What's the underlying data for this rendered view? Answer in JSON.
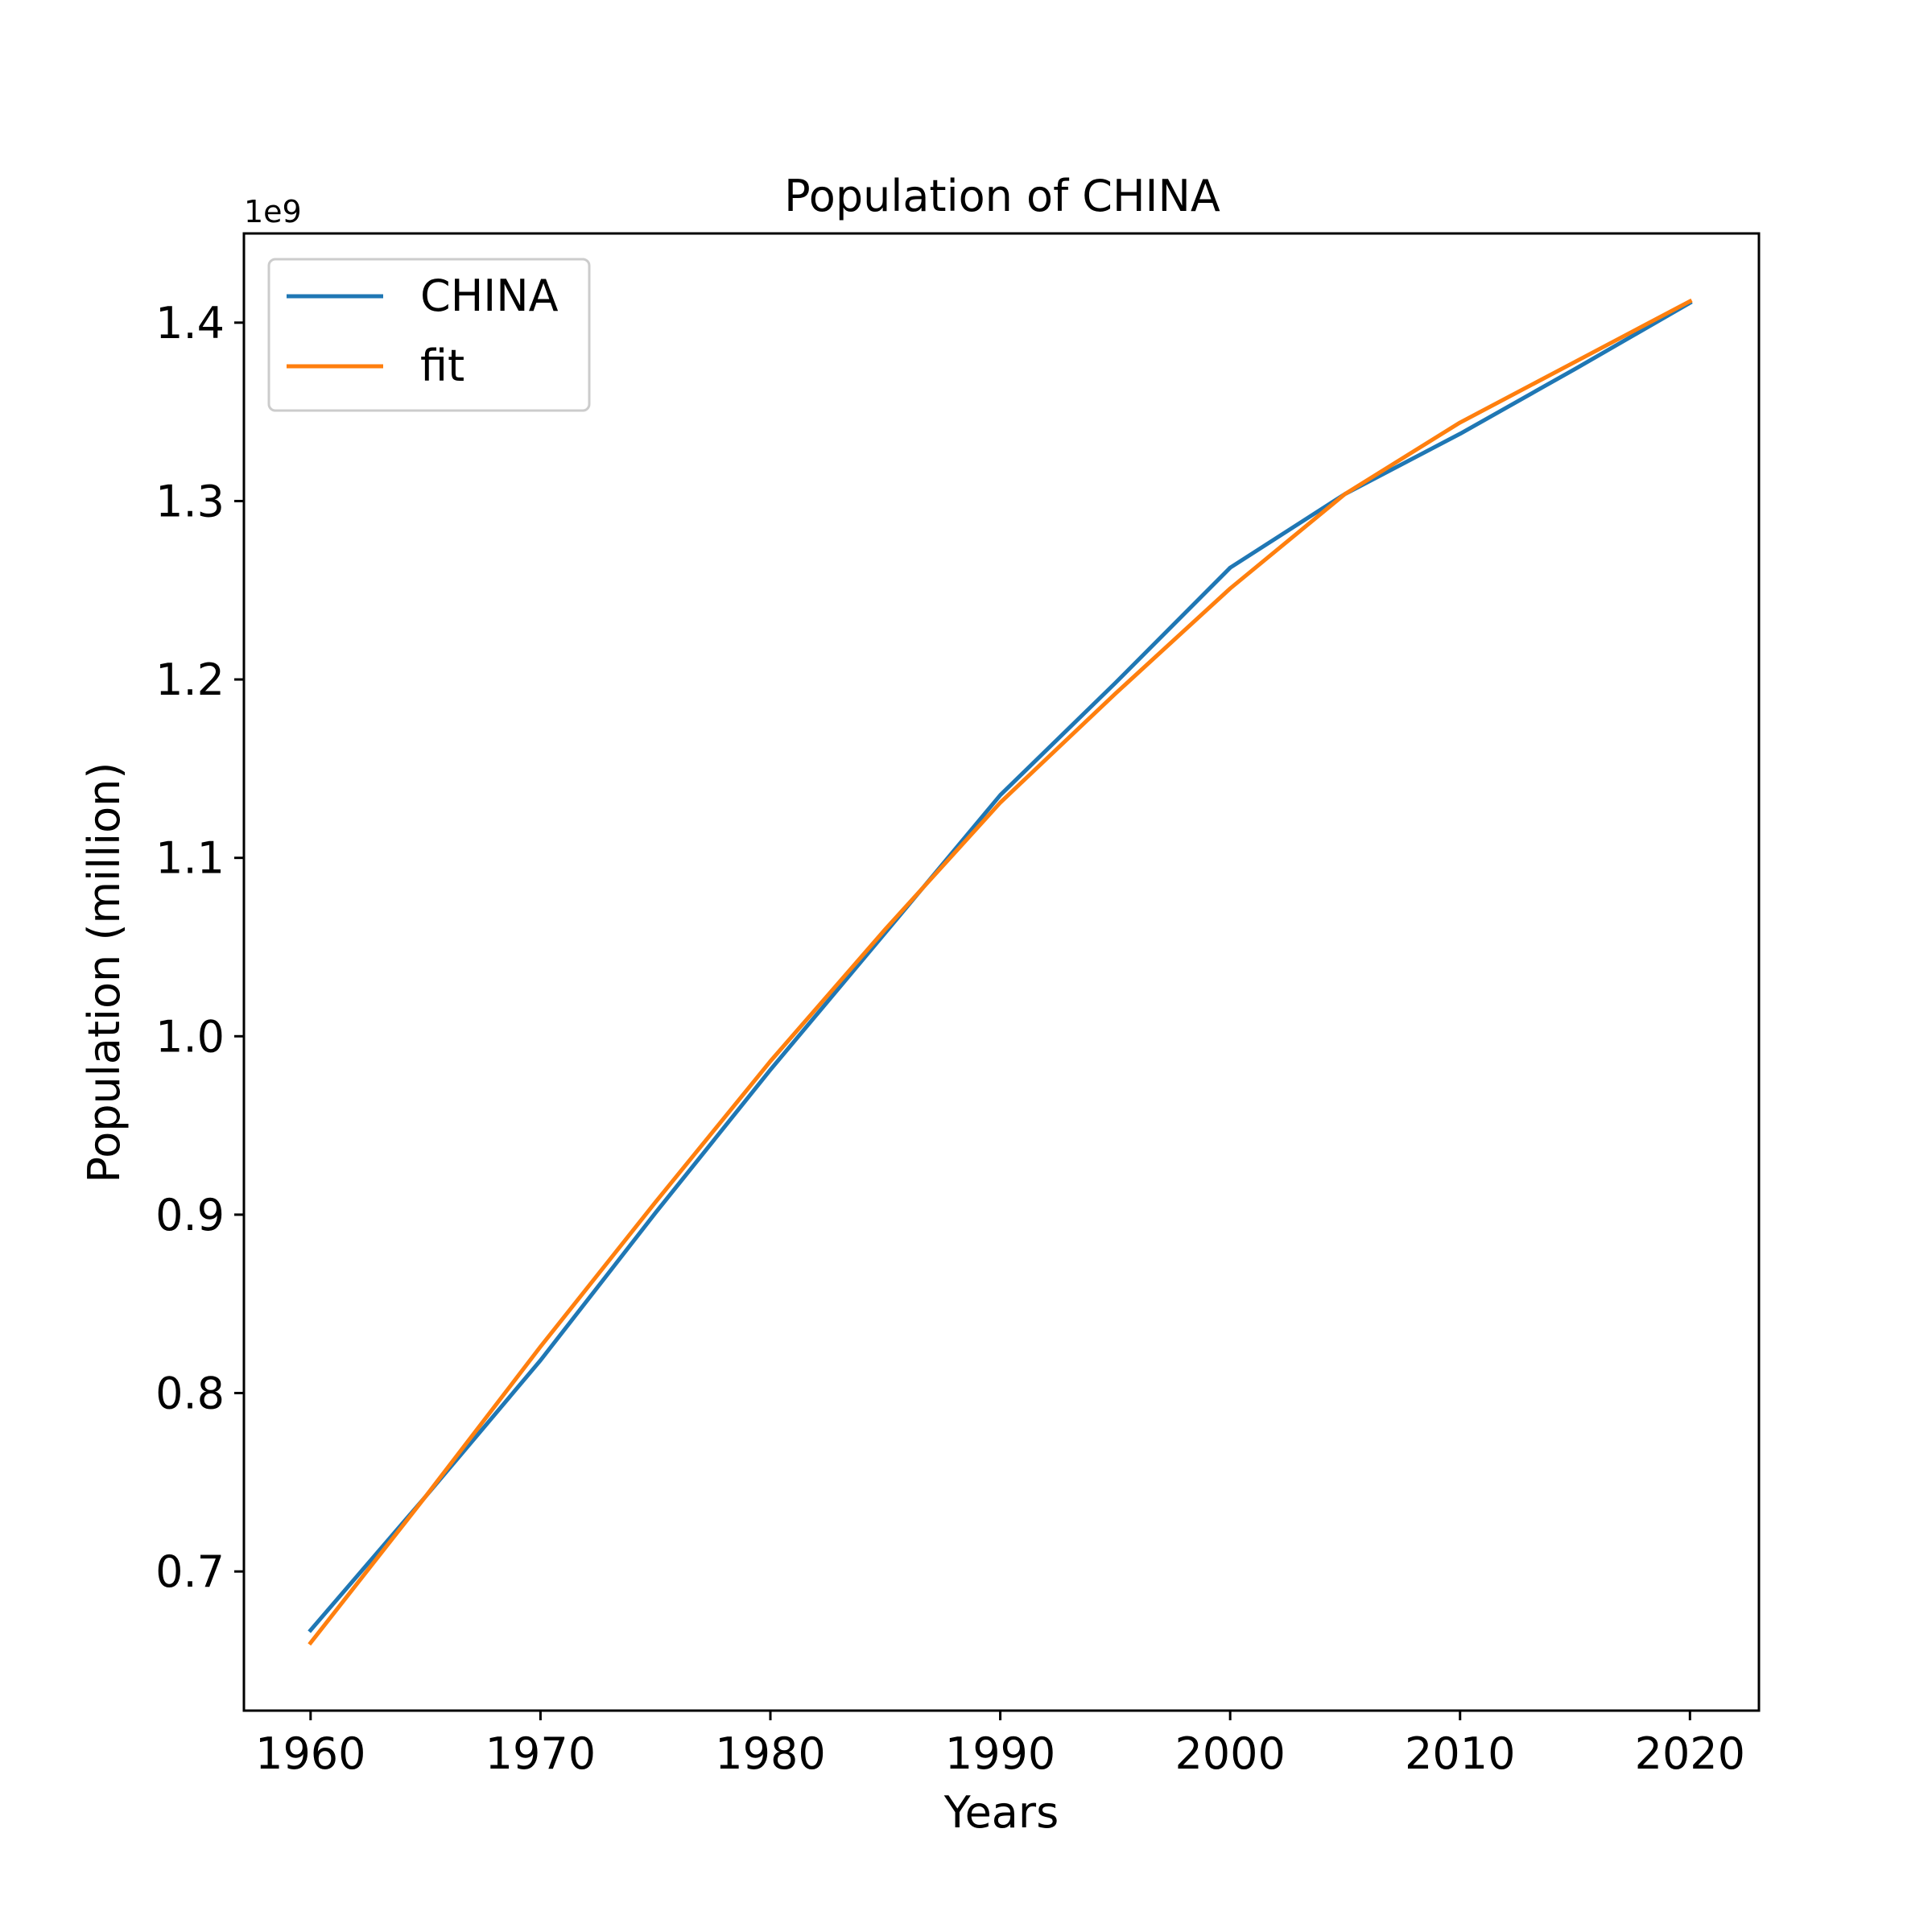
{
  "chart_data": {
    "type": "line",
    "title": "Population of CHINA",
    "xlabel": "Years",
    "ylabel": "Population (million)",
    "y_offset_label": "1e9",
    "x": [
      1960,
      1965,
      1970,
      1975,
      1980,
      1985,
      1990,
      1995,
      2000,
      2005,
      2010,
      2015,
      2020
    ],
    "series": [
      {
        "name": "CHINA",
        "color": "#1f77b4",
        "values": [
          667070000,
          742000000,
          818315000,
          901000000,
          981235000,
          1058000000,
          1135185000,
          1198000000,
          1262645000,
          1304000000,
          1337705000,
          1374000000,
          1411100000
        ]
      },
      {
        "name": "fit",
        "color": "#ff7f0e",
        "values": [
          660000000,
          742000000,
          826000000,
          907000000,
          986000000,
          1060000000,
          1131000000,
          1192000000,
          1251000000,
          1304000000,
          1344000000,
          1378000000,
          1412000000
        ]
      }
    ],
    "xlim": [
      1957.1,
      2023
    ],
    "ylim": [
      622000000,
      1450000000
    ],
    "xticks": [
      1960,
      1970,
      1980,
      1990,
      2000,
      2010,
      2020
    ],
    "xtick_labels": [
      "1960",
      "1970",
      "1980",
      "1990",
      "2000",
      "2010",
      "2020"
    ],
    "yticks": [
      700000000,
      800000000,
      900000000,
      1000000000,
      1100000000,
      1200000000,
      1300000000,
      1400000000
    ],
    "ytick_labels": [
      "0.7",
      "0.8",
      "0.9",
      "1.0",
      "1.1",
      "1.2",
      "1.3",
      "1.4"
    ],
    "legend_placement": "upper-left",
    "grid": false
  }
}
